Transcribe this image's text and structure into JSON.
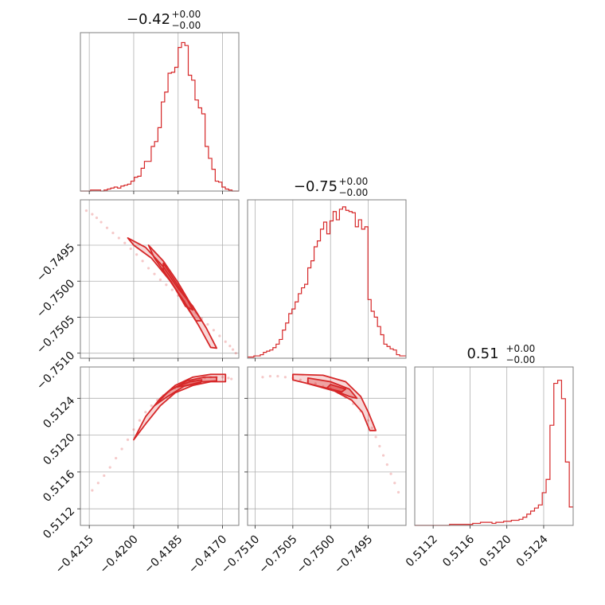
{
  "style": {
    "color": "#d62728",
    "grid": true
  },
  "chart_data": [
    {
      "type": "histogram",
      "panel": "p00",
      "title_main": "−0.42",
      "title_sup": "+0.00",
      "title_sub": "−0.00",
      "xlim": [
        -0.4218,
        -0.41645
      ],
      "x_ticks": [
        -0.4215,
        -0.42,
        -0.4185,
        -0.417
      ],
      "x_tick_labels": [],
      "y_ticks": [],
      "values": [
        0,
        0,
        0,
        1,
        1,
        1,
        0,
        1,
        2,
        3,
        4,
        3,
        5,
        6,
        7,
        10,
        14,
        15,
        23,
        30,
        30,
        45,
        50,
        64,
        90,
        100,
        119,
        120,
        125,
        145,
        150,
        147,
        117,
        112,
        92,
        84,
        78,
        45,
        33,
        22,
        10,
        9,
        4,
        2,
        1,
        0,
        0
      ],
      "ymax": 160
    },
    {
      "type": "histogram",
      "panel": "p11",
      "title_main": "−0.75",
      "title_sup": "+0.00",
      "title_sub": "−0.00",
      "xlim": [
        -0.7511,
        -0.749
      ],
      "x_ticks": [
        -0.751,
        -0.7505,
        -0.75,
        -0.7495
      ],
      "x_tick_labels": [],
      "y_ticks": [],
      "values": [
        1,
        1,
        2,
        2,
        3,
        5,
        6,
        7,
        9,
        12,
        16,
        24,
        30,
        38,
        42,
        48,
        55,
        60,
        63,
        77,
        83,
        95,
        100,
        110,
        116,
        106,
        117,
        125,
        118,
        127,
        129,
        126,
        125,
        124,
        112,
        118,
        110,
        112,
        50,
        40,
        35,
        27,
        20,
        12,
        10,
        8,
        7,
        3,
        2,
        2
      ],
      "ymax": 135
    },
    {
      "type": "histogram",
      "panel": "p22",
      "title_main": "0.51",
      "title_sup": "+0.00",
      "title_sub": "−0.00",
      "xlim": [
        0.511,
        0.51272
      ],
      "x_ticks": [
        0.5112,
        0.5116,
        0.512,
        0.5124
      ],
      "x_tick_labels": [
        "0.5112",
        "0.5116",
        "0.5120",
        "0.5124"
      ],
      "y_ticks": [],
      "values": [
        0,
        0,
        0,
        0,
        0,
        0,
        0,
        0,
        0,
        1,
        1,
        1,
        1,
        1,
        1,
        2,
        2,
        3,
        3,
        3,
        2,
        3,
        3,
        4,
        4,
        5,
        5,
        6,
        8,
        11,
        14,
        17,
        20,
        32,
        45,
        98,
        139,
        142,
        124,
        62,
        18
      ],
      "ymax": 155
    },
    {
      "type": "scatter",
      "panel": "p10",
      "xlim": [
        -0.4218,
        -0.41645
      ],
      "ylim": [
        -0.75107,
        -0.74887
      ],
      "x_ticks": [
        -0.4215,
        -0.42,
        -0.4185,
        -0.417
      ],
      "x_tick_labels": [],
      "y_ticks": [
        -0.751,
        -0.7505,
        -0.75,
        -0.7495
      ],
      "y_tick_labels": [
        "−0.7510",
        "−0.7505",
        "−0.7500",
        "−0.7495"
      ],
      "x": [
        -0.4216,
        -0.4214,
        -0.42125,
        -0.4211,
        -0.4209,
        -0.4207,
        -0.4205,
        -0.4203,
        -0.4201,
        -0.4199,
        -0.4197,
        -0.4195,
        -0.4193,
        -0.4191,
        -0.4189,
        -0.4187,
        -0.4185,
        -0.4183,
        -0.4181,
        -0.4179,
        -0.4177,
        -0.4175,
        -0.4173,
        -0.4171,
        -0.4169,
        -0.41675,
        -0.41665,
        -0.41655
      ],
      "y": [
        -0.74902,
        -0.74907,
        -0.74912,
        -0.74918,
        -0.74926,
        -0.74933,
        -0.7494,
        -0.74947,
        -0.74955,
        -0.74963,
        -0.74972,
        -0.74982,
        -0.7499,
        -0.74998,
        -0.75005,
        -0.75012,
        -0.7502,
        -0.75028,
        -0.75036,
        -0.75044,
        -0.75052,
        -0.7506,
        -0.75068,
        -0.75076,
        -0.75084,
        -0.7509,
        -0.75095,
        -0.751
      ],
      "contours": [
        [
          [
            -0.4202,
            -0.7494
          ],
          [
            -0.4196,
            -0.74953
          ],
          [
            -0.419,
            -0.7498
          ],
          [
            -0.4185,
            -0.7501
          ],
          [
            -0.418,
            -0.75035
          ],
          [
            -0.41755,
            -0.75065
          ],
          [
            -0.4172,
            -0.75093
          ],
          [
            -0.4174,
            -0.75092
          ],
          [
            -0.4178,
            -0.75062
          ],
          [
            -0.4183,
            -0.75028
          ],
          [
            -0.4188,
            -0.74998
          ],
          [
            -0.4194,
            -0.74968
          ],
          [
            -0.42,
            -0.7495
          ],
          [
            -0.4202,
            -0.7494
          ]
        ],
        [
          [
            -0.4195,
            -0.7495
          ],
          [
            -0.419,
            -0.74972
          ],
          [
            -0.4185,
            -0.75002
          ],
          [
            -0.4181,
            -0.7503
          ],
          [
            -0.4177,
            -0.75055
          ],
          [
            -0.4179,
            -0.75055
          ],
          [
            -0.4183,
            -0.7503
          ],
          [
            -0.41875,
            -0.75
          ],
          [
            -0.4193,
            -0.74968
          ],
          [
            -0.4195,
            -0.7495
          ]
        ],
        [
          [
            -0.419,
            -0.74975
          ],
          [
            -0.4186,
            -0.75
          ],
          [
            -0.4182,
            -0.75025
          ],
          [
            -0.418,
            -0.7504
          ],
          [
            -0.41825,
            -0.75035
          ],
          [
            -0.4186,
            -0.7501
          ],
          [
            -0.419,
            -0.74985
          ],
          [
            -0.419,
            -0.74975
          ]
        ]
      ]
    },
    {
      "type": "scatter",
      "panel": "p20",
      "xlim": [
        -0.4218,
        -0.41645
      ],
      "ylim": [
        0.51102,
        0.51274
      ],
      "x_ticks": [
        -0.4215,
        -0.42,
        -0.4185,
        -0.417
      ],
      "x_tick_labels": [
        "−0.4215",
        "−0.4200",
        "−0.4185",
        "−0.4170"
      ],
      "y_ticks": [
        0.5112,
        0.5116,
        0.512,
        0.5124
      ],
      "y_tick_labels": [
        "0.5112",
        "0.5116",
        "0.5120",
        "0.5124"
      ],
      "x": [
        -0.4214,
        -0.4212,
        -0.421,
        -0.4208,
        -0.4206,
        -0.4204,
        -0.4202,
        -0.42,
        -0.4198,
        -0.4196,
        -0.4194,
        -0.4192,
        -0.419,
        -0.4188,
        -0.4186,
        -0.4184,
        -0.4182,
        -0.418,
        -0.4178,
        -0.4176,
        -0.4174,
        -0.4172,
        -0.417,
        -0.4168,
        -0.4167
      ],
      "y": [
        0.5114,
        0.51148,
        0.51156,
        0.51165,
        0.51175,
        0.51185,
        0.51195,
        0.51206,
        0.51216,
        0.51225,
        0.51232,
        0.51238,
        0.51243,
        0.51247,
        0.51251,
        0.51254,
        0.51257,
        0.51259,
        0.51261,
        0.51262,
        0.51263,
        0.51263,
        0.51263,
        0.51262,
        0.51261
      ],
      "contours": [
        [
          [
            -0.42,
            0.51195
          ],
          [
            -0.4196,
            0.5122
          ],
          [
            -0.4191,
            0.5124
          ],
          [
            -0.4186,
            0.51254
          ],
          [
            -0.418,
            0.51263
          ],
          [
            -0.4174,
            0.51266
          ],
          [
            -0.4169,
            0.51266
          ],
          [
            -0.4169,
            0.51258
          ],
          [
            -0.4174,
            0.51258
          ],
          [
            -0.418,
            0.51254
          ],
          [
            -0.4186,
            0.51246
          ],
          [
            -0.4191,
            0.51232
          ],
          [
            -0.4196,
            0.51212
          ],
          [
            -0.42,
            0.51195
          ]
        ],
        [
          [
            -0.4193,
            0.51232
          ],
          [
            -0.4188,
            0.51248
          ],
          [
            -0.4182,
            0.51259
          ],
          [
            -0.4176,
            0.51263
          ],
          [
            -0.4172,
            0.51263
          ],
          [
            -0.4172,
            0.51259
          ],
          [
            -0.4177,
            0.51258
          ],
          [
            -0.4183,
            0.51253
          ],
          [
            -0.4189,
            0.51241
          ],
          [
            -0.4193,
            0.51232
          ]
        ],
        [
          [
            -0.4186,
            0.51252
          ],
          [
            -0.4181,
            0.51258
          ],
          [
            -0.4177,
            0.5126
          ],
          [
            -0.41775,
            0.51256
          ],
          [
            -0.4182,
            0.51254
          ],
          [
            -0.4186,
            0.51252
          ]
        ]
      ]
    },
    {
      "type": "scatter",
      "panel": "p21",
      "xlim": [
        -0.7511,
        -0.749
      ],
      "ylim": [
        0.51102,
        0.51274
      ],
      "x_ticks": [
        -0.751,
        -0.7505,
        -0.75,
        -0.7495
      ],
      "x_tick_labels": [
        "−0.7510",
        "−0.7505",
        "−0.7500",
        "−0.7495"
      ],
      "y_ticks": [
        0.5112,
        0.5116,
        0.512,
        0.5124
      ],
      "y_tick_labels": [],
      "x": [
        -0.7509,
        -0.7508,
        -0.7507,
        -0.7506,
        -0.7505,
        -0.7504,
        -0.7503,
        -0.7502,
        -0.7501,
        -0.75,
        -0.7499,
        -0.7498,
        -0.7497,
        -0.7496,
        -0.7495,
        -0.74945,
        -0.7494,
        -0.74935,
        -0.7493,
        -0.74925,
        -0.7492,
        -0.74915,
        -0.7491
      ],
      "y": [
        0.51263,
        0.51264,
        0.51264,
        0.51263,
        0.51262,
        0.5126,
        0.51258,
        0.51256,
        0.51253,
        0.5125,
        0.51246,
        0.51241,
        0.51234,
        0.51226,
        0.51216,
        0.51208,
        0.51198,
        0.51188,
        0.51178,
        0.51168,
        0.51158,
        0.51148,
        0.51138
      ],
      "contours": [
        [
          [
            -0.7505,
            0.51266
          ],
          [
            -0.7501,
            0.51265
          ],
          [
            -0.7498,
            0.51258
          ],
          [
            -0.7496,
            0.51242
          ],
          [
            -0.7495,
            0.51225
          ],
          [
            -0.7494,
            0.51205
          ],
          [
            -0.74948,
            0.51205
          ],
          [
            -0.74958,
            0.51225
          ],
          [
            -0.74972,
            0.51238
          ],
          [
            -0.74995,
            0.51248
          ],
          [
            -0.7503,
            0.51256
          ],
          [
            -0.7505,
            0.5126
          ],
          [
            -0.7505,
            0.51266
          ]
        ],
        [
          [
            -0.7503,
            0.51262
          ],
          [
            -0.75,
            0.51258
          ],
          [
            -0.74975,
            0.5125
          ],
          [
            -0.74965,
            0.5124
          ],
          [
            -0.74975,
            0.51242
          ],
          [
            -0.75,
            0.5125
          ],
          [
            -0.7503,
            0.51256
          ],
          [
            -0.7503,
            0.51262
          ]
        ],
        [
          [
            -0.75,
            0.51255
          ],
          [
            -0.7498,
            0.5125
          ],
          [
            -0.74985,
            0.51247
          ],
          [
            -0.75005,
            0.51251
          ],
          [
            -0.75,
            0.51255
          ]
        ]
      ]
    }
  ]
}
